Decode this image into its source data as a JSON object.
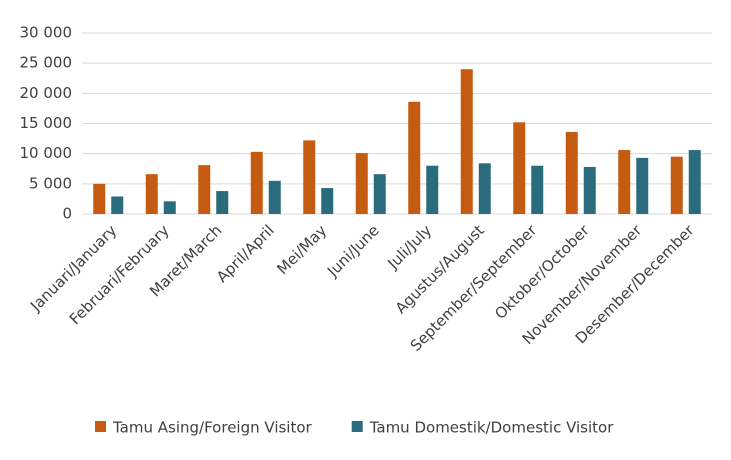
{
  "chart_data": {
    "type": "bar",
    "categories": [
      "Januari/January",
      "Februari/February",
      "Maret/March",
      "April/April",
      "Mei/May",
      "Juni/June",
      "Juli/July",
      "Agustus/August",
      "September/September",
      "Oktober/October",
      "November/November",
      "Desember/December"
    ],
    "series": [
      {
        "name": "Tamu Asing/Foreign Visitor",
        "color": "#c55a11",
        "values": [
          5000,
          6600,
          8100,
          10300,
          12200,
          10100,
          18600,
          24000,
          15200,
          13600,
          10600,
          9500
        ]
      },
      {
        "name": "Tamu Domestik/Domestic Visitor",
        "color": "#2a6b7c",
        "values": [
          2900,
          2100,
          3800,
          5500,
          4300,
          6600,
          8000,
          8400,
          8000,
          7800,
          9300,
          10600
        ]
      }
    ],
    "ylim": [
      0,
      30000
    ],
    "yticks": [
      0,
      {
        "value": 5000,
        "label": "5 000"
      },
      {
        "value": 10000,
        "label": "10 000"
      },
      {
        "value": 15000,
        "label": "15 000"
      },
      {
        "value": 20000,
        "label": "20 000"
      },
      {
        "value": 25000,
        "label": "25 000"
      },
      {
        "value": 30000,
        "label": "30 000"
      }
    ],
    "grid": true,
    "legend": "bottom"
  }
}
